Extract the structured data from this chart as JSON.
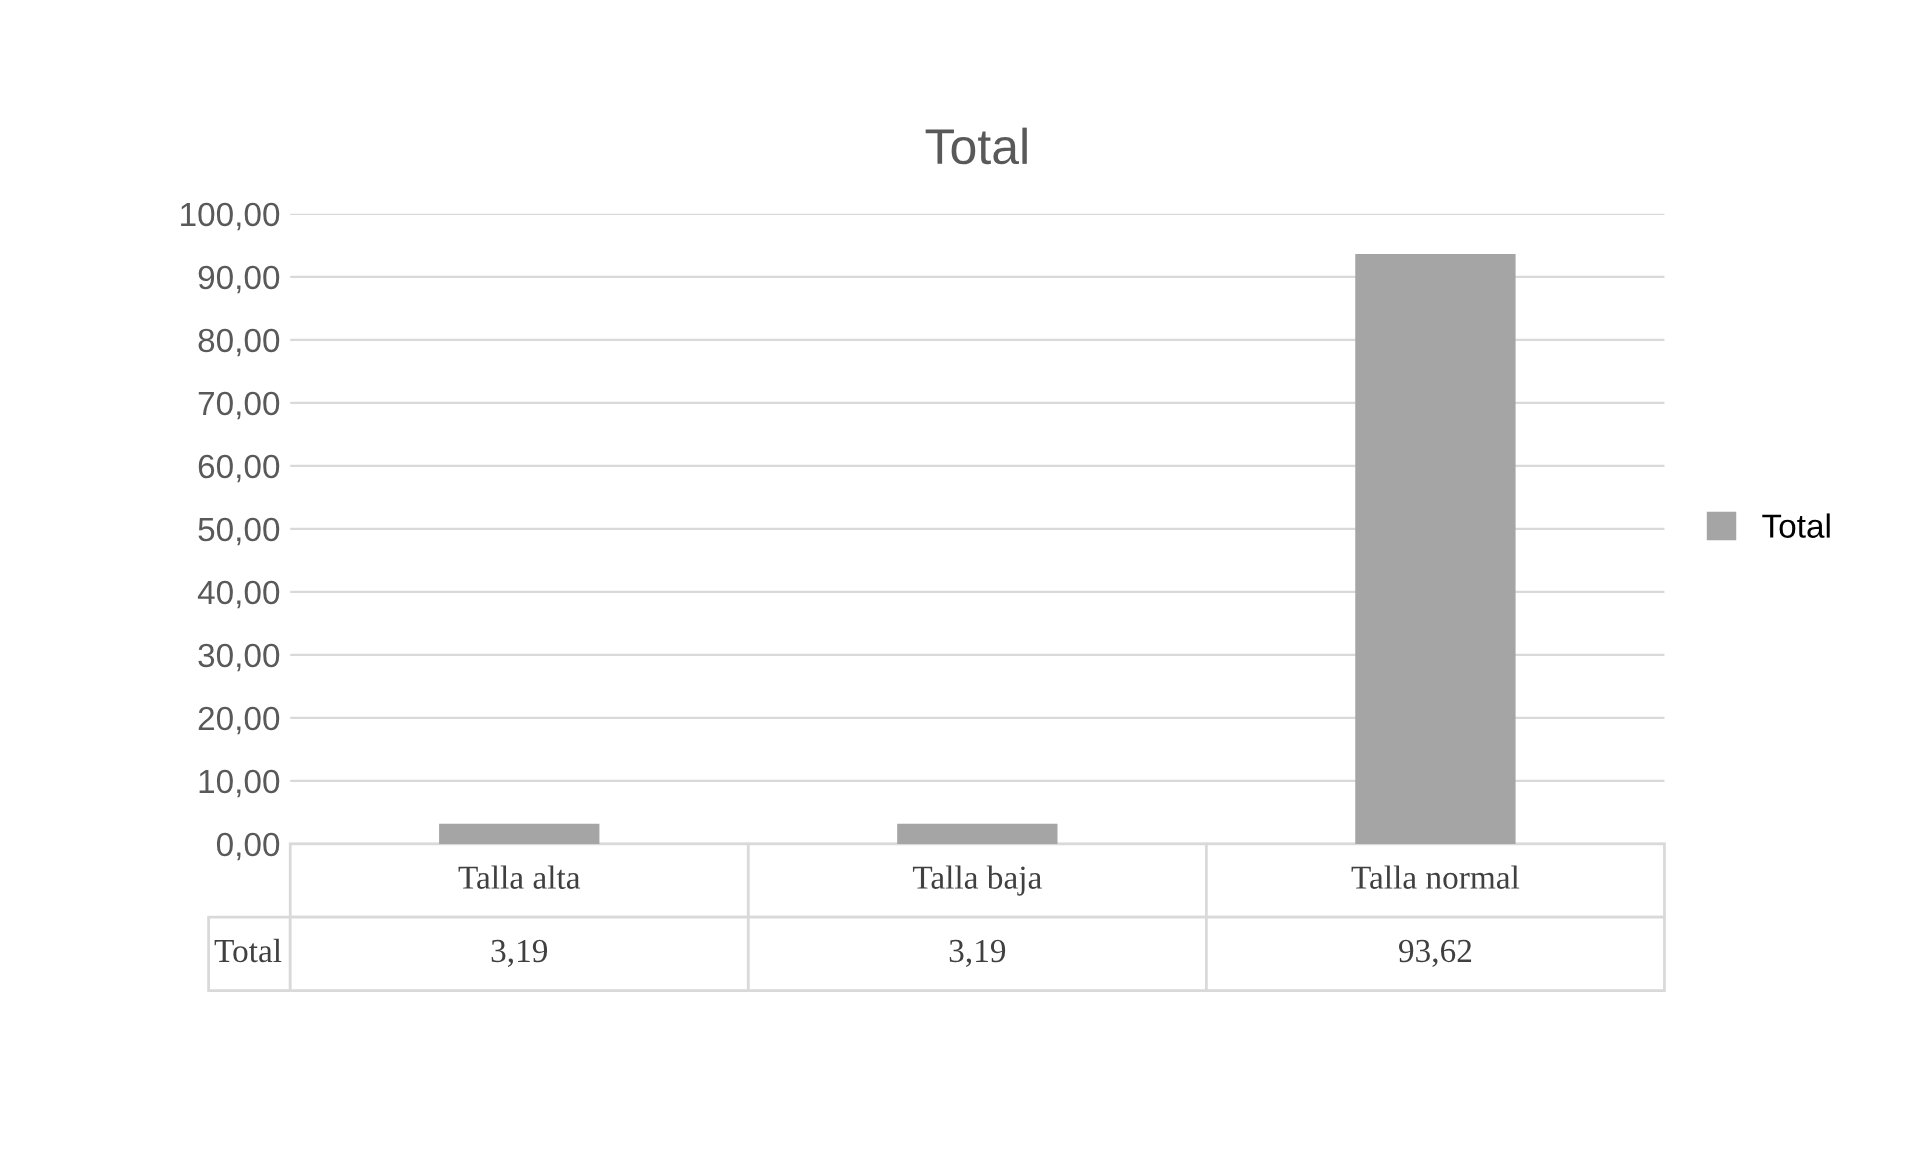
{
  "chart_data": {
    "type": "bar",
    "title": "Total",
    "categories": [
      "Talla alta",
      "Talla baja",
      "Talla normal"
    ],
    "series": [
      {
        "name": "Total",
        "color": "#a5a5a5",
        "values": [
          3.19,
          3.19,
          93.62
        ],
        "value_labels": [
          "3,19",
          "3,19",
          "93,62"
        ]
      }
    ],
    "ylim": [
      0,
      100
    ],
    "yticks": [
      {
        "value": 0,
        "label": "0,00"
      },
      {
        "value": 10,
        "label": "10,00"
      },
      {
        "value": 20,
        "label": "20,00"
      },
      {
        "value": 30,
        "label": "30,00"
      },
      {
        "value": 40,
        "label": "40,00"
      },
      {
        "value": 50,
        "label": "50,00"
      },
      {
        "value": 60,
        "label": "60,00"
      },
      {
        "value": 70,
        "label": "70,00"
      },
      {
        "value": 80,
        "label": "80,00"
      },
      {
        "value": 90,
        "label": "90,00"
      },
      {
        "value": 100,
        "label": "100,00"
      }
    ],
    "grid": "y",
    "legend": "right"
  }
}
